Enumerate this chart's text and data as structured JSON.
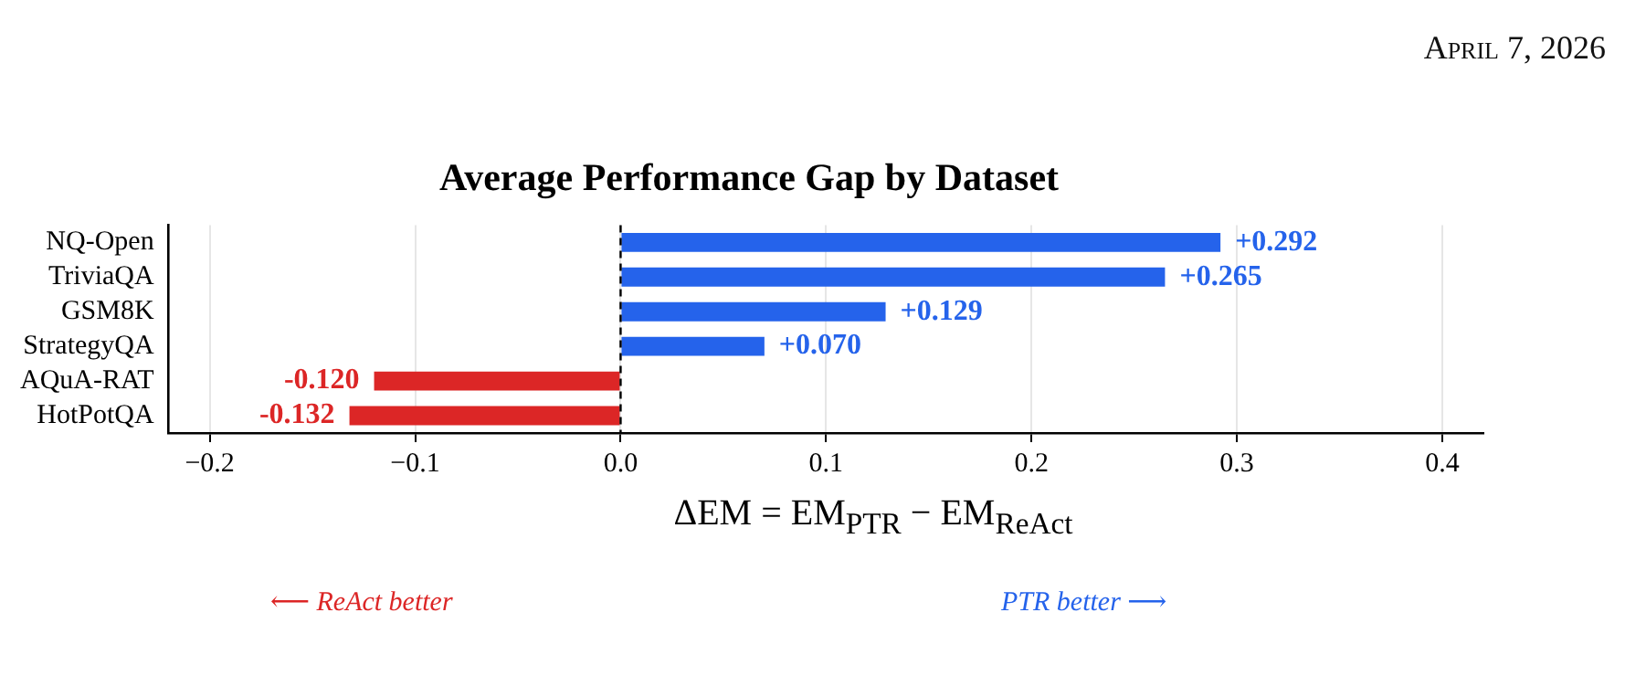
{
  "chart_data": {
    "type": "bar",
    "orientation": "horizontal",
    "title": "Average Performance Gap by Dataset",
    "xlabel": "ΔEM = EM$_{PTR}$ − EM$_{ReAct}$",
    "categories": [
      "NQ-Open",
      "TriviaQA",
      "GSM8K",
      "StrategyQA",
      "AQuA-RAT",
      "HotPotQA"
    ],
    "values": [
      0.292,
      0.265,
      0.129,
      0.07,
      -0.12,
      -0.132
    ],
    "colors": [
      "#2563eb",
      "#2563eb",
      "#2563eb",
      "#2563eb",
      "#dc2626",
      "#dc2626"
    ],
    "value_labels": [
      "+0.292",
      "+0.265",
      "+0.129",
      "+0.070",
      "-0.120",
      "-0.132"
    ],
    "xlim": [
      -0.22,
      0.42
    ],
    "xticks": [
      {
        "value": -0.2,
        "label": "−0.2"
      },
      {
        "value": -0.1,
        "label": "−0.1"
      },
      {
        "value": 0,
        "label": "0.0"
      },
      {
        "value": 0.1,
        "label": "0.1"
      },
      {
        "value": 0.2,
        "label": "0.2"
      },
      {
        "value": 0.3,
        "label": "0.3"
      },
      {
        "value": 0.4,
        "label": "0.4"
      }
    ],
    "ref_lines": [
      {
        "axis": "x",
        "value": 0,
        "color": "#000000",
        "line_style": "dashed"
      }
    ],
    "grid": "x",
    "legend": false,
    "annotations": [
      "April 7, 2026",
      "⟵ ReAct better",
      "PTR better ⟶"
    ]
  }
}
